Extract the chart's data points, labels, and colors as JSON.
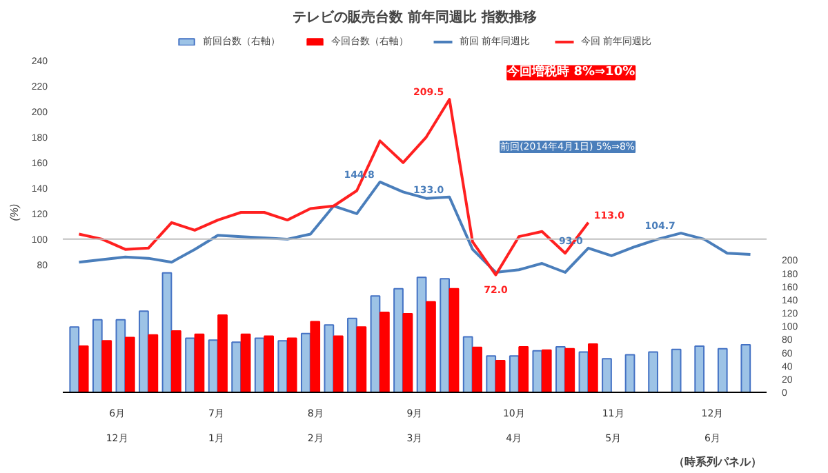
{
  "chart_data": {
    "type": "bar",
    "title": "テレビの販売台数 前年同週比 指数推移",
    "ylabel": "(%)",
    "categories": [
      null,
      null,
      null,
      null,
      null,
      null,
      null,
      null,
      null,
      null,
      null,
      null,
      null,
      null,
      null,
      null,
      null,
      null,
      null,
      null,
      null,
      null,
      null,
      null,
      null,
      null,
      null,
      null,
      null,
      null
    ],
    "series": [
      {
        "name": "前回台数（右軸）",
        "axis": "y2",
        "color": "#9dc3e6",
        "values": [
          99,
          110,
          110,
          123,
          181,
          82,
          79,
          76,
          82,
          78,
          89,
          102,
          112,
          146,
          157,
          174,
          172,
          84,
          55,
          55,
          63,
          69,
          61,
          51,
          57,
          61,
          65,
          70,
          66,
          72
        ]
      },
      {
        "name": "今回台数（右軸）",
        "axis": "y2",
        "color": "#ff0000",
        "values": [
          70,
          78,
          83,
          87,
          93,
          88,
          117,
          88,
          85,
          82,
          107,
          85,
          99,
          121,
          119,
          137,
          157,
          68,
          48,
          69,
          64,
          66,
          73,
          null,
          null,
          null,
          null,
          null,
          null,
          null
        ]
      },
      {
        "name": "前回 前年同週比",
        "type": "line",
        "color": "#4a7ebb",
        "values": [
          82,
          84,
          86,
          85,
          82,
          92,
          103,
          102,
          101,
          100,
          104,
          126,
          120,
          144.8,
          137,
          132,
          133.0,
          92,
          74,
          76,
          81,
          74,
          93.0,
          87,
          94,
          100,
          104.7,
          100,
          89,
          88
        ],
        "value_labels": [
          null,
          null,
          null,
          null,
          null,
          null,
          null,
          null,
          null,
          null,
          null,
          null,
          null,
          "144.8",
          null,
          null,
          "133.0",
          null,
          null,
          null,
          null,
          null,
          "93.0",
          null,
          null,
          null,
          "104.7",
          null,
          null,
          null
        ]
      },
      {
        "name": "今回 前年同週比",
        "type": "line",
        "color": "#ff2020",
        "values": [
          104,
          100,
          92,
          93,
          113,
          107,
          115,
          121,
          121,
          115,
          124,
          126,
          138,
          177,
          160,
          180,
          209.5,
          98,
          72.0,
          102,
          106,
          89,
          113.0,
          null,
          null,
          null,
          null,
          null,
          null,
          null
        ],
        "value_labels": [
          null,
          null,
          null,
          null,
          null,
          null,
          null,
          null,
          null,
          null,
          null,
          null,
          null,
          null,
          null,
          null,
          "209.5",
          null,
          "72.0",
          null,
          null,
          null,
          "113.0",
          null,
          null,
          null,
          null,
          null,
          null,
          null
        ]
      }
    ],
    "ylim": [
      -20,
      262
    ],
    "yticks": [
      80,
      100,
      120,
      140,
      160,
      180,
      200,
      220,
      240
    ],
    "y2lim": [
      0,
      545
    ],
    "y2ticks": [
      0,
      20,
      40,
      60,
      80,
      100,
      120,
      140,
      160,
      180,
      200
    ],
    "ref_lines": [
      {
        "axis": "y",
        "value": 100,
        "color": "#bfbfbf"
      }
    ],
    "annotations": [
      "今回増税時 8%⇒10%",
      "前回(2014年4月1日) 5%⇒8%",
      "6月",
      "7月",
      "8月",
      "9月",
      "10月",
      "11月",
      "12月",
      "12月",
      "1月",
      "2月",
      "3月",
      "4月",
      "5月",
      "6月",
      "（時系列パネル）"
    ],
    "legend": "top",
    "grid": false
  }
}
